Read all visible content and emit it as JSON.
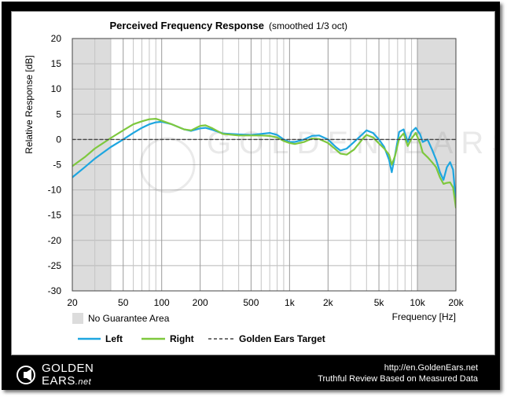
{
  "chart_data": {
    "type": "line",
    "title": "Perceived Frequency Response",
    "subtitle": "(smoothed 1/3 oct)",
    "xlabel": "Frequency [Hz]",
    "ylabel": "Relative Response [dB]",
    "xscale": "log",
    "xlim": [
      20,
      20000
    ],
    "ylim": [
      -30,
      20
    ],
    "xticks": [
      20,
      50,
      100,
      200,
      500,
      1000,
      2000,
      5000,
      10000,
      20000
    ],
    "xtick_labels": [
      "20",
      "50",
      "100",
      "200",
      "500",
      "1k",
      "2k",
      "5k",
      "10k",
      "20k"
    ],
    "yticks": [
      20,
      15,
      10,
      5,
      0,
      -5,
      -10,
      -15,
      -20,
      -25,
      -30
    ],
    "grid": true,
    "no_guarantee_ranges": [
      [
        20,
        40
      ],
      [
        10000,
        20000
      ]
    ],
    "no_guarantee_label": "No Guarantee Area",
    "watermark": "GOLDEN EARS",
    "legend": [
      {
        "name": "Left",
        "color": "#1ea6e0",
        "style": "solid"
      },
      {
        "name": "Right",
        "color": "#7ec83e",
        "style": "solid"
      },
      {
        "name": "Golden Ears Target",
        "color": "#444444",
        "style": "dashed"
      }
    ],
    "series": [
      {
        "name": "Left",
        "color": "#1ea6e0",
        "points": [
          [
            20,
            -7.5
          ],
          [
            25,
            -5.5
          ],
          [
            30,
            -3.8
          ],
          [
            40,
            -1.5
          ],
          [
            50,
            0
          ],
          [
            60,
            1.3
          ],
          [
            70,
            2.3
          ],
          [
            80,
            3
          ],
          [
            90,
            3.4
          ],
          [
            100,
            3.5
          ],
          [
            120,
            3
          ],
          [
            150,
            2
          ],
          [
            170,
            1.7
          ],
          [
            200,
            2.2
          ],
          [
            220,
            2.3
          ],
          [
            250,
            1.9
          ],
          [
            300,
            1.2
          ],
          [
            400,
            1
          ],
          [
            500,
            0.9
          ],
          [
            600,
            1.1
          ],
          [
            700,
            1.3
          ],
          [
            800,
            0.9
          ],
          [
            900,
            0
          ],
          [
            1000,
            -0.5
          ],
          [
            1100,
            -0.5
          ],
          [
            1300,
            0
          ],
          [
            1500,
            0.7
          ],
          [
            1700,
            0.8
          ],
          [
            2000,
            0
          ],
          [
            2300,
            -1.5
          ],
          [
            2500,
            -2.2
          ],
          [
            2800,
            -1.8
          ],
          [
            3200,
            -0.5
          ],
          [
            3700,
            1
          ],
          [
            4000,
            1.8
          ],
          [
            4500,
            1.3
          ],
          [
            5000,
            0
          ],
          [
            5500,
            -1.5
          ],
          [
            6000,
            -4
          ],
          [
            6300,
            -6.5
          ],
          [
            6700,
            -3
          ],
          [
            7200,
            1.5
          ],
          [
            7800,
            2
          ],
          [
            8400,
            -0.5
          ],
          [
            9000,
            1.5
          ],
          [
            9700,
            2.3
          ],
          [
            10500,
            1
          ],
          [
            11000,
            -0.5
          ],
          [
            12000,
            0
          ],
          [
            13000,
            -2
          ],
          [
            14000,
            -4
          ],
          [
            15000,
            -6.5
          ],
          [
            16000,
            -8
          ],
          [
            17000,
            -5.5
          ],
          [
            18000,
            -4.5
          ],
          [
            19000,
            -6
          ],
          [
            20000,
            -12.5
          ]
        ]
      },
      {
        "name": "Right",
        "color": "#7ec83e",
        "points": [
          [
            20,
            -5.3
          ],
          [
            25,
            -3.5
          ],
          [
            30,
            -1.8
          ],
          [
            40,
            0.3
          ],
          [
            50,
            1.8
          ],
          [
            60,
            3
          ],
          [
            70,
            3.6
          ],
          [
            80,
            4
          ],
          [
            90,
            4.1
          ],
          [
            100,
            3.7
          ],
          [
            120,
            3
          ],
          [
            150,
            2
          ],
          [
            170,
            1.8
          ],
          [
            200,
            2.7
          ],
          [
            220,
            2.8
          ],
          [
            250,
            2.2
          ],
          [
            300,
            1.1
          ],
          [
            400,
            0.8
          ],
          [
            500,
            0.8
          ],
          [
            600,
            0.8
          ],
          [
            700,
            0.7
          ],
          [
            800,
            0.4
          ],
          [
            900,
            -0.3
          ],
          [
            1000,
            -0.7
          ],
          [
            1100,
            -0.9
          ],
          [
            1300,
            -0.5
          ],
          [
            1500,
            0.2
          ],
          [
            1700,
            0.1
          ],
          [
            2000,
            -0.7
          ],
          [
            2300,
            -2
          ],
          [
            2500,
            -2.8
          ],
          [
            2800,
            -3
          ],
          [
            3200,
            -2
          ],
          [
            3700,
            0
          ],
          [
            4000,
            0.9
          ],
          [
            4500,
            0.4
          ],
          [
            5000,
            -0.8
          ],
          [
            5500,
            -1.8
          ],
          [
            6000,
            -3
          ],
          [
            6300,
            -5
          ],
          [
            6700,
            -3.2
          ],
          [
            7200,
            0.2
          ],
          [
            7800,
            1.2
          ],
          [
            8400,
            -1.3
          ],
          [
            9000,
            0.2
          ],
          [
            9700,
            1.3
          ],
          [
            10500,
            -0.8
          ],
          [
            11000,
            -2.6
          ],
          [
            12000,
            -3.5
          ],
          [
            13000,
            -4.5
          ],
          [
            14000,
            -5.5
          ],
          [
            15000,
            -7.5
          ],
          [
            16000,
            -8.8
          ],
          [
            17000,
            -8.6
          ],
          [
            18000,
            -8.5
          ],
          [
            19000,
            -9.5
          ],
          [
            20000,
            -13.5
          ]
        ]
      },
      {
        "name": "Golden Ears Target",
        "color": "#444444",
        "points": [
          [
            20,
            0
          ],
          [
            20000,
            0
          ]
        ]
      }
    ]
  },
  "footer": {
    "logo_line1": "GOLDEN",
    "logo_line2": "EARS",
    "logo_net": ".net",
    "url": "http://en.GoldenEars.net",
    "tagline": "Truthful Review Based on Measured Data"
  },
  "colors": {
    "frame": "#000000",
    "plot_background": "#ffffff",
    "no_guarantee_fill": "#dcdcdc",
    "grid": "#b8b8b8",
    "target": "#444444",
    "left": "#1ea6e0",
    "right": "#7ec83e"
  }
}
